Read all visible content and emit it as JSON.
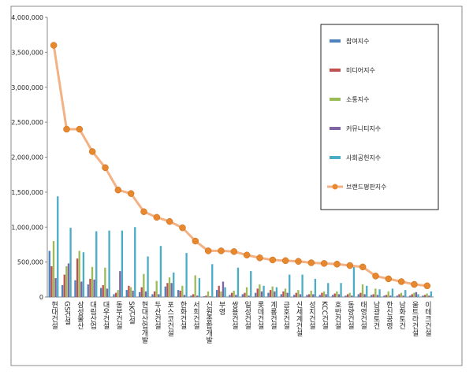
{
  "chart_data": {
    "type": "bar",
    "categories": [
      "현대건설",
      "GS건설",
      "삼성물산",
      "대림산업",
      "대우건설",
      "동부건설",
      "SK건설",
      "현대산업개발",
      "두산건설",
      "포스코건설",
      "한화건설",
      "서희건설",
      "신원종합개발",
      "부영",
      "쌍용건설",
      "일성건설",
      "롯데건설",
      "계룡건설",
      "금호건설",
      "신세계건설",
      "성지건설",
      "KCC건설",
      "호반건설",
      "동양건설",
      "태영건설",
      "남광토건",
      "한신공영",
      "남화토건",
      "울트라건설",
      "이테크건설"
    ],
    "series": [
      {
        "name": "참여지수",
        "color": "#4f81bd",
        "values": [
          660000,
          170000,
          240000,
          180000,
          130000,
          40000,
          100000,
          70000,
          40000,
          150000,
          100000,
          20000,
          10000,
          100000,
          30000,
          40000,
          60000,
          60000,
          40000,
          30000,
          30000,
          30000,
          30000,
          20000,
          40000,
          30000,
          20000,
          20000,
          20000,
          20000
        ]
      },
      {
        "name": "미디어지수",
        "color": "#c0504d",
        "values": [
          440000,
          320000,
          550000,
          260000,
          170000,
          60000,
          160000,
          140000,
          80000,
          200000,
          90000,
          40000,
          20000,
          160000,
          60000,
          60000,
          120000,
          100000,
          80000,
          60000,
          40000,
          60000,
          50000,
          40000,
          60000,
          40000,
          30000,
          40000,
          40000,
          30000
        ]
      },
      {
        "name": "소통지수",
        "color": "#9bbb59",
        "values": [
          800000,
          440000,
          660000,
          430000,
          420000,
          100000,
          140000,
          330000,
          230000,
          280000,
          160000,
          310000,
          80000,
          80000,
          90000,
          140000,
          180000,
          150000,
          120000,
          100000,
          90000,
          80000,
          80000,
          60000,
          180000,
          120000,
          80000,
          60000,
          60000,
          50000
        ]
      },
      {
        "name": "커뮤니티지수",
        "color": "#8064a2",
        "values": [
          270000,
          480000,
          220000,
          250000,
          120000,
          370000,
          90000,
          80000,
          40000,
          200000,
          30000,
          20000,
          10000,
          220000,
          30000,
          20000,
          80000,
          80000,
          60000,
          40000,
          40000,
          40000,
          40000,
          20000,
          40000,
          30000,
          20000,
          20000,
          70000,
          20000
        ]
      },
      {
        "name": "사회공헌지수",
        "color": "#4bacc6",
        "values": [
          1440000,
          990000,
          640000,
          940000,
          950000,
          950000,
          1000000,
          580000,
          730000,
          350000,
          630000,
          270000,
          470000,
          140000,
          420000,
          370000,
          160000,
          140000,
          320000,
          320000,
          260000,
          200000,
          200000,
          430000,
          160000,
          110000,
          120000,
          100000,
          40000,
          80000
        ]
      },
      {
        "name": "브랜드평판지수",
        "color": "#f79646",
        "type": "line",
        "values": [
          3600000,
          2400000,
          2400000,
          2080000,
          1850000,
          1530000,
          1480000,
          1220000,
          1140000,
          1080000,
          990000,
          800000,
          660000,
          660000,
          650000,
          600000,
          560000,
          530000,
          520000,
          510000,
          490000,
          480000,
          470000,
          450000,
          430000,
          300000,
          260000,
          220000,
          180000,
          160000
        ]
      }
    ],
    "ylim": [
      0,
      4000000
    ],
    "yticks": [
      0,
      {
        "value": 500000,
        "label": "500,000"
      },
      {
        "value": 1000000,
        "label": "1,000,000"
      },
      {
        "value": 1500000,
        "label": "1,500,000"
      },
      {
        "value": 2000000,
        "label": "2,000,000"
      },
      {
        "value": 2500000,
        "label": "2,500,000"
      },
      {
        "value": 3000000,
        "label": "3,000,000"
      },
      {
        "value": 3500000,
        "label": "3,500,000"
      },
      {
        "value": 4000000,
        "label": "4,000,000"
      }
    ],
    "legend": "right"
  }
}
